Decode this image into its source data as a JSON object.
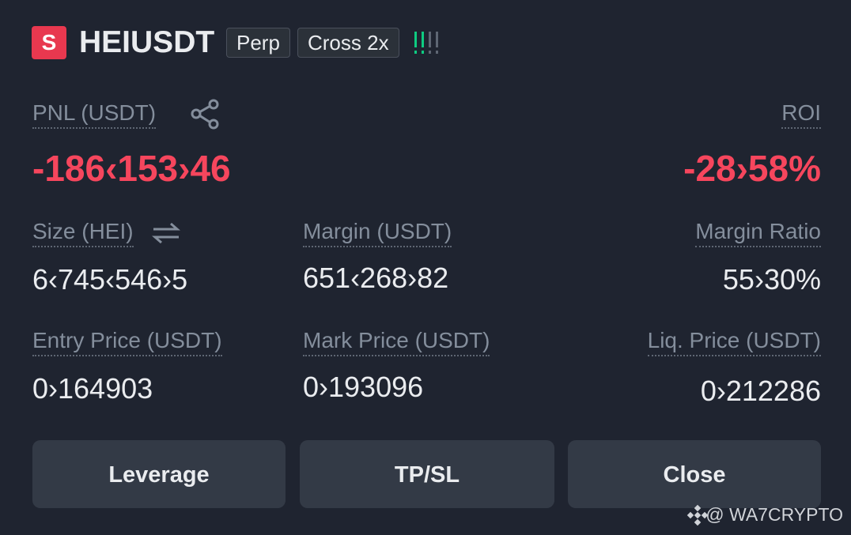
{
  "header": {
    "badge": "S",
    "symbol": "HEIUSDT",
    "tags": [
      "Perp",
      "Cross 2x"
    ]
  },
  "pnl": {
    "label": "PNL (USDT)",
    "value": "-186‹153›46"
  },
  "roi": {
    "label": "ROI",
    "value": "-28›58%"
  },
  "fields": [
    {
      "label": "Size (HEI)",
      "value": "6‹745‹546›5"
    },
    {
      "label": "Margin (USDT)",
      "value": "651‹268›82"
    },
    {
      "label": "Margin Ratio",
      "value": "55›30%"
    },
    {
      "label": "Entry Price (USDT)",
      "value": "0›164903"
    },
    {
      "label": "Mark Price (USDT)",
      "value": "0›193096"
    },
    {
      "label": "Liq. Price (USDT)",
      "value": "0›212286"
    }
  ],
  "buttons": [
    "Leverage",
    "TP/SL",
    "Close"
  ],
  "watermark": "@ WA7CRYPTO"
}
